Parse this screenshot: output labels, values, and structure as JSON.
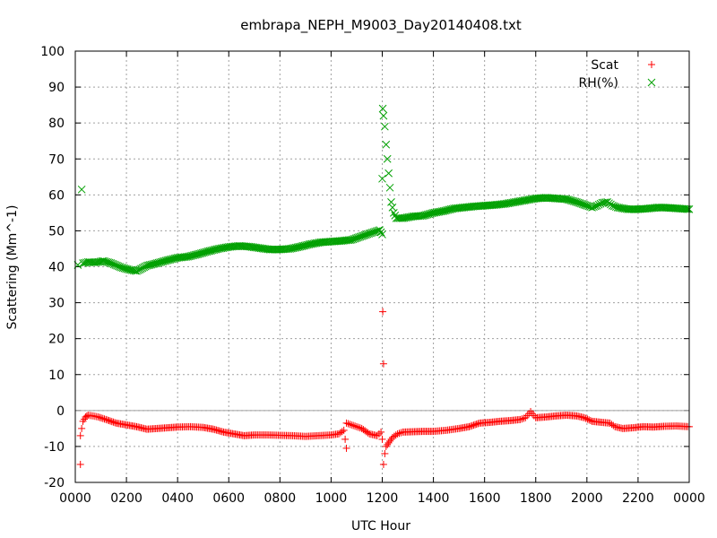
{
  "chart_data": {
    "type": "scatter",
    "title": "embrapa_NEPH_M9003_Day20140408.txt",
    "xlabel": "UTC Hour",
    "ylabel": "Scattering (Mm^-1)",
    "xlim": [
      0,
      24
    ],
    "ylim": [
      -20,
      100
    ],
    "x_ticks": [
      "0000",
      "0200",
      "0400",
      "0600",
      "0800",
      "1000",
      "1200",
      "1400",
      "1600",
      "1800",
      "2000",
      "2200",
      "0000"
    ],
    "y_ticks": [
      -20,
      -10,
      0,
      10,
      20,
      30,
      40,
      50,
      60,
      70,
      80,
      90,
      100
    ],
    "grid": true,
    "zero_line": true,
    "legend_position": "top-right",
    "series": [
      {
        "name": "Scat",
        "marker": "+",
        "color": "#ff0000",
        "points": [
          [
            0.2,
            -15
          ],
          [
            0.2,
            -7
          ],
          [
            0.25,
            -5
          ],
          [
            0.3,
            -3
          ],
          [
            0.4,
            -1.8
          ],
          [
            0.5,
            -1.3
          ],
          [
            0.7,
            -1.5
          ],
          [
            0.9,
            -1.8
          ],
          [
            1.2,
            -2.5
          ],
          [
            1.6,
            -3.5
          ],
          [
            2.0,
            -4.0
          ],
          [
            2.4,
            -4.5
          ],
          [
            2.8,
            -5.2
          ],
          [
            3.2,
            -5.0
          ],
          [
            3.6,
            -4.8
          ],
          [
            4.0,
            -4.6
          ],
          [
            4.5,
            -4.5
          ],
          [
            5.0,
            -4.7
          ],
          [
            5.4,
            -5.2
          ],
          [
            5.8,
            -6.0
          ],
          [
            6.2,
            -6.5
          ],
          [
            6.6,
            -7.0
          ],
          [
            7.0,
            -6.8
          ],
          [
            7.5,
            -6.8
          ],
          [
            8.0,
            -6.9
          ],
          [
            8.5,
            -7.0
          ],
          [
            9.0,
            -7.2
          ],
          [
            9.5,
            -7.0
          ],
          [
            10.0,
            -6.8
          ],
          [
            10.3,
            -6.5
          ],
          [
            10.5,
            -5.5
          ],
          [
            10.6,
            -10.5
          ],
          [
            10.6,
            -3.5
          ],
          [
            10.8,
            -4.0
          ],
          [
            11.0,
            -4.5
          ],
          [
            11.2,
            -5.0
          ],
          [
            11.5,
            -6.5
          ],
          [
            11.8,
            -7.0
          ],
          [
            11.95,
            -6.0
          ],
          [
            12.0,
            -8.0
          ],
          [
            12.02,
            27.5
          ],
          [
            12.05,
            13.0
          ],
          [
            12.05,
            -15.0
          ],
          [
            12.1,
            -12.0
          ],
          [
            12.15,
            -10.0
          ],
          [
            12.25,
            -9.0
          ],
          [
            12.4,
            -7.5
          ],
          [
            12.6,
            -6.5
          ],
          [
            12.8,
            -6.0
          ],
          [
            13.2,
            -5.9
          ],
          [
            13.6,
            -5.8
          ],
          [
            14.0,
            -5.8
          ],
          [
            14.5,
            -5.5
          ],
          [
            15.0,
            -5.0
          ],
          [
            15.4,
            -4.5
          ],
          [
            15.8,
            -3.5
          ],
          [
            16.2,
            -3.3
          ],
          [
            16.6,
            -3.0
          ],
          [
            17.0,
            -2.8
          ],
          [
            17.4,
            -2.5
          ],
          [
            17.6,
            -2.0
          ],
          [
            17.8,
            -0.3
          ],
          [
            18.0,
            -2.0
          ],
          [
            18.4,
            -1.8
          ],
          [
            18.8,
            -1.5
          ],
          [
            19.2,
            -1.3
          ],
          [
            19.6,
            -1.5
          ],
          [
            19.9,
            -2.0
          ],
          [
            20.2,
            -3.0
          ],
          [
            20.6,
            -3.3
          ],
          [
            20.9,
            -3.5
          ],
          [
            21.1,
            -4.5
          ],
          [
            21.4,
            -5.0
          ],
          [
            21.8,
            -4.8
          ],
          [
            22.2,
            -4.5
          ],
          [
            22.6,
            -4.6
          ],
          [
            23.0,
            -4.4
          ],
          [
            23.5,
            -4.3
          ],
          [
            24.0,
            -4.5
          ]
        ]
      },
      {
        "name": "RH(%)",
        "marker": "x",
        "color": "#00a000",
        "points": [
          [
            0.1,
            40.5
          ],
          [
            0.25,
            61.5
          ],
          [
            0.3,
            41.0
          ],
          [
            0.5,
            41.3
          ],
          [
            0.8,
            41.2
          ],
          [
            1.1,
            41.6
          ],
          [
            1.4,
            41.0
          ],
          [
            1.8,
            39.8
          ],
          [
            2.1,
            39.2
          ],
          [
            2.4,
            38.8
          ],
          [
            2.8,
            40.3
          ],
          [
            3.2,
            41.0
          ],
          [
            3.6,
            41.8
          ],
          [
            4.0,
            42.5
          ],
          [
            4.4,
            42.8
          ],
          [
            4.8,
            43.5
          ],
          [
            5.2,
            44.3
          ],
          [
            5.6,
            45.0
          ],
          [
            6.0,
            45.5
          ],
          [
            6.4,
            45.8
          ],
          [
            6.8,
            45.6
          ],
          [
            7.2,
            45.2
          ],
          [
            7.6,
            44.8
          ],
          [
            8.0,
            44.8
          ],
          [
            8.4,
            45.0
          ],
          [
            8.8,
            45.6
          ],
          [
            9.2,
            46.3
          ],
          [
            9.6,
            46.8
          ],
          [
            10.0,
            47.0
          ],
          [
            10.4,
            47.2
          ],
          [
            10.8,
            47.5
          ],
          [
            11.2,
            48.5
          ],
          [
            11.6,
            49.5
          ],
          [
            11.9,
            50.2
          ],
          [
            12.0,
            49.0
          ],
          [
            12.0,
            64.5
          ],
          [
            12.02,
            84.0
          ],
          [
            12.05,
            82.0
          ],
          [
            12.1,
            79.0
          ],
          [
            12.15,
            74.0
          ],
          [
            12.2,
            70.0
          ],
          [
            12.25,
            66.0
          ],
          [
            12.3,
            62.0
          ],
          [
            12.35,
            58.0
          ],
          [
            12.45,
            55.0
          ],
          [
            12.55,
            53.5
          ],
          [
            12.8,
            53.5
          ],
          [
            13.2,
            54.0
          ],
          [
            13.6,
            54.2
          ],
          [
            14.0,
            55.0
          ],
          [
            14.4,
            55.5
          ],
          [
            14.8,
            56.2
          ],
          [
            15.2,
            56.5
          ],
          [
            15.6,
            56.8
          ],
          [
            16.0,
            57.0
          ],
          [
            16.4,
            57.2
          ],
          [
            16.8,
            57.5
          ],
          [
            17.2,
            58.0
          ],
          [
            17.6,
            58.5
          ],
          [
            18.0,
            59.0
          ],
          [
            18.4,
            59.2
          ],
          [
            18.8,
            59.0
          ],
          [
            19.2,
            58.8
          ],
          [
            19.6,
            58.0
          ],
          [
            20.0,
            57.0
          ],
          [
            20.2,
            56.5
          ],
          [
            20.4,
            57.0
          ],
          [
            20.6,
            57.8
          ],
          [
            20.8,
            58.0
          ],
          [
            21.0,
            57.0
          ],
          [
            21.2,
            56.5
          ],
          [
            21.6,
            56.0
          ],
          [
            22.0,
            56.0
          ],
          [
            22.4,
            56.2
          ],
          [
            22.8,
            56.5
          ],
          [
            23.2,
            56.4
          ],
          [
            23.6,
            56.2
          ],
          [
            24.0,
            56.0
          ]
        ]
      }
    ]
  }
}
